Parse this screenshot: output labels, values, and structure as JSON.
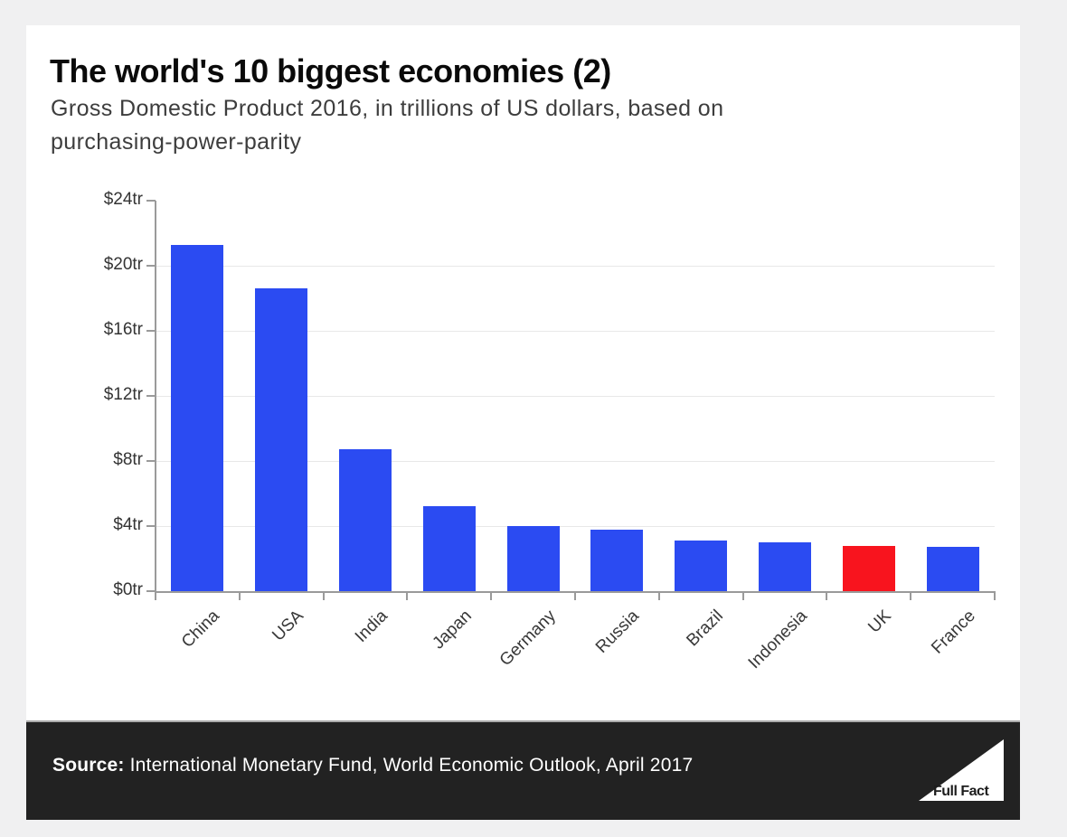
{
  "chart_data": {
    "type": "bar",
    "title": "The world's 10 biggest economies (2)",
    "subtitle": "Gross Domestic Product 2016, in trillions of US dollars, based on purchasing-power-parity",
    "subtitle_lines": [
      "Gross Domestic Product 2016, in trillions of US dollars, based on",
      "purchasing-power-parity"
    ],
    "categories": [
      "China",
      "USA",
      "India",
      "Japan",
      "Germany",
      "Russia",
      "Brazil",
      "Indonesia",
      "UK",
      "France"
    ],
    "values": [
      21.3,
      18.6,
      8.7,
      5.2,
      4.0,
      3.8,
      3.1,
      3.0,
      2.8,
      2.7
    ],
    "ylabel": "",
    "xlabel": "",
    "ylim": [
      0,
      24
    ],
    "ytick_step": 4,
    "ytick_labels": [
      "$0tr",
      "$4tr",
      "$8tr",
      "$12tr",
      "$16tr",
      "$20tr",
      "$24tr"
    ],
    "gridline_values": [
      4,
      8,
      12,
      16,
      20
    ],
    "grid": true,
    "legend": false,
    "bar_color": "#2b4bf2",
    "highlight_color": "#f8141e",
    "highlight_index": 8
  },
  "footer": {
    "source_label": "Source:",
    "source_text": " International Monetary Fund, World Economic Outlook, April 2017",
    "logo_text": "Full Fact"
  }
}
